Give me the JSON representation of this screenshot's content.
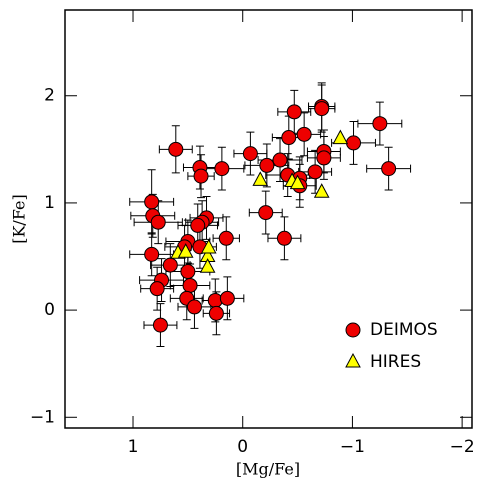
{
  "chart_data": {
    "type": "scatter",
    "xlabel": "[Mg/Fe]",
    "ylabel": "[K/Fe]",
    "xlim": [
      1.62,
      -2.09
    ],
    "ylim": [
      -1.1,
      2.8
    ],
    "xticks": [
      1,
      0,
      {
        "value": -1,
        "label": "−1"
      },
      {
        "value": -2,
        "label": "−2"
      }
    ],
    "yticks": [
      {
        "value": -1,
        "label": "−1"
      },
      0,
      1,
      2
    ],
    "legend": "lower right",
    "series": [
      {
        "name": "DEIMOS",
        "color": "#ee0000",
        "marker": "circle",
        "x": [
          0.61,
          0.19,
          0.39,
          0.38,
          0.83,
          0.82,
          0.77,
          0.33,
          0.37,
          0.41,
          0.15,
          0.5,
          0.53,
          0.39,
          0.83,
          0.66,
          0.74,
          0.78,
          0.5,
          0.48,
          0.51,
          0.44,
          0.25,
          0.14,
          0.24,
          0.75,
          -0.07,
          -0.34,
          -0.47,
          -0.56,
          -0.42,
          -0.41,
          -0.22,
          -0.52,
          -0.52,
          -0.66,
          -0.72,
          -0.72,
          -0.74,
          -0.74,
          -1.01,
          -1.25,
          -1.33,
          -0.21,
          -0.38
        ],
        "values": [
          1.5,
          1.32,
          1.33,
          1.25,
          1.01,
          0.88,
          0.82,
          0.86,
          0.82,
          0.79,
          0.67,
          0.64,
          0.59,
          0.59,
          0.52,
          0.42,
          0.28,
          0.2,
          0.36,
          0.23,
          0.11,
          0.03,
          0.09,
          0.11,
          -0.03,
          -0.14,
          1.46,
          1.4,
          1.85,
          1.64,
          1.61,
          1.26,
          1.35,
          1.23,
          1.16,
          1.29,
          1.9,
          1.88,
          1.48,
          1.42,
          1.56,
          1.74,
          1.32,
          0.91,
          0.67
        ],
        "xerr": [
          0.15,
          0.2,
          0.15,
          0.12,
          0.2,
          0.2,
          0.22,
          0.15,
          0.15,
          0.18,
          0.12,
          0.2,
          0.18,
          0.15,
          0.2,
          0.18,
          0.2,
          0.15,
          0.2,
          0.18,
          0.15,
          0.15,
          0.12,
          0.15,
          0.12,
          0.15,
          0.15,
          0.2,
          0.15,
          0.15,
          0.15,
          0.2,
          0.2,
          0.15,
          0.15,
          0.15,
          0.12,
          0.12,
          0.15,
          0.15,
          0.2,
          0.2,
          0.2,
          0.15,
          0.15
        ],
        "yerr": [
          0.22,
          0.2,
          0.2,
          0.2,
          0.3,
          0.2,
          0.2,
          0.2,
          0.2,
          0.2,
          0.2,
          0.2,
          0.2,
          0.2,
          0.2,
          0.2,
          0.2,
          0.2,
          0.2,
          0.2,
          0.2,
          0.2,
          0.2,
          0.2,
          0.2,
          0.2,
          0.2,
          0.2,
          0.2,
          0.2,
          0.2,
          0.2,
          0.2,
          0.2,
          0.2,
          0.2,
          0.22,
          0.22,
          0.2,
          0.2,
          0.2,
          0.2,
          0.2,
          0.2,
          0.2
        ]
      },
      {
        "name": "HIRES",
        "color": "#ffff00",
        "marker": "triangle",
        "x": [
          0.59,
          0.52,
          0.32,
          0.31,
          0.32,
          -0.16,
          -0.45,
          -0.5,
          -0.72,
          -0.89
        ],
        "values": [
          0.53,
          0.54,
          0.5,
          0.58,
          0.4,
          1.21,
          1.2,
          1.18,
          1.1,
          1.6
        ]
      }
    ]
  }
}
